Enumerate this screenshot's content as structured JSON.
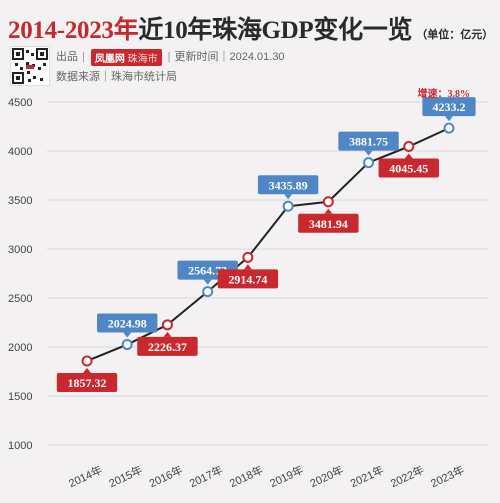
{
  "header": {
    "title_highlight": "2014-2023年",
    "title_rest": "近10年珠海GDP变化一览",
    "unit": "（单位：亿元）",
    "source_prefix": "出品",
    "publisher_logo": "凤凰网",
    "publisher_logo_sub": "珠海市",
    "updated": "更新时间｜2024.01.30",
    "data_source": "数据来源｜珠海市统计局"
  },
  "colors": {
    "accent_red": "#c8282e",
    "accent_blue": "#4f86c6",
    "line": "#222222",
    "grid": "#d9d6d6"
  },
  "chart_data": {
    "type": "line",
    "categories": [
      "2014年",
      "2015年",
      "2016年",
      "2017年",
      "2018年",
      "2019年",
      "2020年",
      "2021年",
      "2022年",
      "2023年"
    ],
    "values": [
      1857.32,
      2024.98,
      2226.37,
      2564.73,
      2914.74,
      3435.89,
      3481.94,
      3881.75,
      4045.45,
      4233.2
    ],
    "data_labels": [
      "1857.32",
      "2024.98",
      "2226.37",
      "2564.73",
      "2914.74",
      "3435.89",
      "3481.94",
      "3881.75",
      "4045.45",
      "4233.2"
    ],
    "label_styles": [
      "red",
      "blue",
      "red",
      "blue",
      "red",
      "blue",
      "red",
      "blue",
      "red",
      "blue"
    ],
    "ylim": [
      1000,
      4500
    ],
    "yticks": [
      "1000",
      "1500",
      "2000",
      "2500",
      "3000",
      "3500",
      "4000",
      "4500"
    ],
    "grid": true,
    "annotation": "增速：3.8%"
  }
}
